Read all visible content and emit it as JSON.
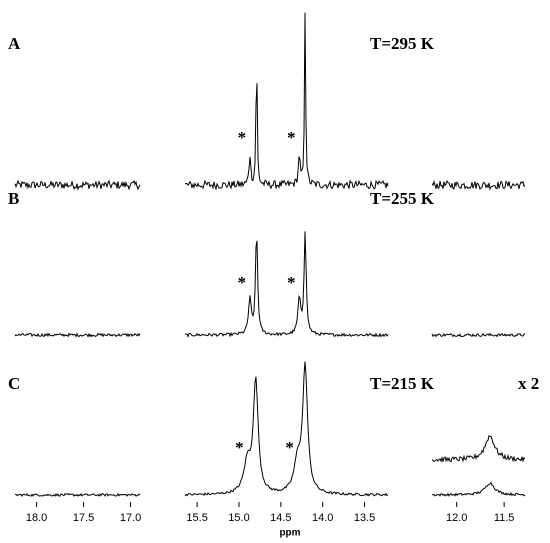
{
  "chart_data": {
    "type": "spectrum",
    "xlabel": "ppm",
    "segments": [
      {
        "xlim": [
          18.23,
          16.9
        ],
        "xticks": [
          {
            "value": 18,
            "label": "18.0"
          },
          17.5,
          {
            "value": 17,
            "label": "17.0"
          }
        ]
      },
      {
        "xlim": [
          15.645,
          13.22
        ],
        "xticks": [
          15.5,
          {
            "value": 15,
            "label": "15.0"
          },
          14.5,
          {
            "value": 14,
            "label": "14.0"
          },
          13.5
        ]
      },
      {
        "xlim": [
          12.26,
          11.28
        ],
        "xticks": [
          {
            "value": 12,
            "label": "12.0"
          },
          11.5
        ]
      }
    ],
    "panels": [
      {
        "label": "A",
        "annotation": "T=295 K",
        "noise": 4,
        "stars": [
          "*",
          "*"
        ],
        "peaks": {
          "x": [
            14.87,
            14.79,
            14.28,
            14.21
          ],
          "heights": [
            30,
            140,
            30,
            180
          ],
          "widths": [
            0.012,
            0.008,
            0.012,
            0.008
          ]
        }
      },
      {
        "label": "B",
        "annotation": "T=255 K",
        "noise": 1.5,
        "stars": [
          "*",
          "*"
        ],
        "peaks": {
          "x": [
            14.87,
            14.79,
            14.28,
            14.21
          ],
          "heights": [
            35,
            103,
            35,
            103
          ],
          "widths": [
            0.02,
            0.015,
            0.02,
            0.015
          ]
        }
      },
      {
        "label": "C",
        "annotation": "T=215 K",
        "noise": 1.2,
        "stars": [
          "*",
          "*"
        ],
        "scale_label": "x 2",
        "scale": 2,
        "peaks": {
          "x": [
            14.9,
            14.8,
            14.3,
            14.21,
            11.65
          ],
          "heights": [
            30,
            112,
            30,
            125,
            12
          ],
          "widths": [
            0.05,
            0.035,
            0.05,
            0.035,
            0.06
          ]
        }
      }
    ]
  }
}
